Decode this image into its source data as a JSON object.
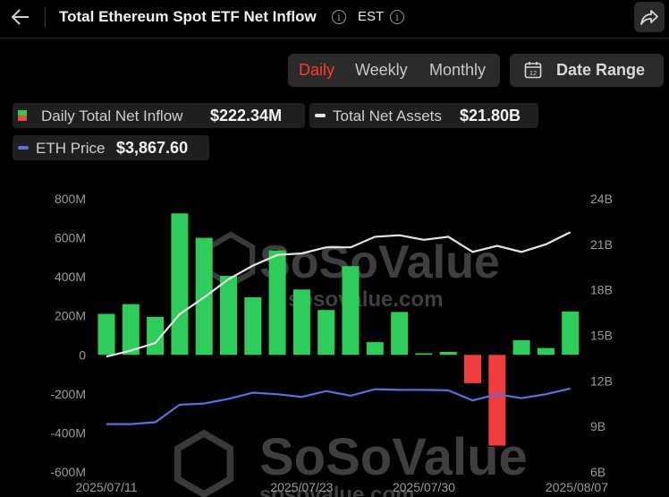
{
  "header": {
    "title": "Total Ethereum Spot ETF Net Inflow",
    "timezone": "EST"
  },
  "tabs": [
    {
      "label": "Daily",
      "active": true
    },
    {
      "label": "Weekly",
      "active": false
    },
    {
      "label": "Monthly",
      "active": false
    }
  ],
  "date_range_label": "Date Range",
  "calendar_icon_digits": "12",
  "legend": {
    "inflow_label": "Daily Total Net Inflow",
    "inflow_value": "$222.34M",
    "assets_label": "Total Net Assets",
    "assets_value": "$21.80B",
    "price_label": "ETH Price",
    "price_value": "$3,867.60"
  },
  "watermark": {
    "brand": "SoSoValue",
    "url": "sosovalue.com"
  },
  "colors": {
    "positive_bar": "#2ecc5a",
    "negative_bar": "#f03e3e",
    "assets_line": "#e6e6e6",
    "price_line": "#5b6ee0",
    "active_tab": "#ff3b30"
  },
  "chart_data": {
    "type": "bar",
    "x_tick_labels": [
      "2025/07/11",
      "2025/07/23",
      "2025/07/30",
      "2025/08/07"
    ],
    "left_axis": {
      "ticks": [
        "800M",
        "600M",
        "400M",
        "200M",
        "0",
        "-200M",
        "-400M",
        "-600M"
      ],
      "ylim_millions": [
        -600,
        800
      ]
    },
    "right_axis": {
      "ticks": [
        "24B",
        "21B",
        "18B",
        "15B",
        "12B",
        "9B",
        "6B"
      ],
      "ylim_billions": [
        6,
        24
      ]
    },
    "series": [
      {
        "name": "Daily Total Net Inflow",
        "unit": "M",
        "values": [
          210,
          260,
          195,
          725,
          600,
          405,
          295,
          535,
          335,
          230,
          455,
          65,
          220,
          8,
          15,
          -145,
          -465,
          75,
          35,
          222.34
        ]
      },
      {
        "name": "Total Net Assets",
        "unit": "B",
        "values": [
          13.6,
          14.0,
          14.5,
          16.4,
          17.5,
          18.7,
          19.6,
          20.3,
          20.4,
          20.8,
          20.8,
          21.5,
          21.6,
          21.3,
          21.5,
          20.5,
          20.9,
          20.5,
          21.0,
          21.8
        ]
      },
      {
        "name": "ETH Price",
        "unit": "USD",
        "values": [
          2950,
          2950,
          3000,
          3450,
          3480,
          3600,
          3760,
          3720,
          3650,
          3800,
          3680,
          3850,
          3830,
          3830,
          3820,
          3560,
          3720,
          3620,
          3720,
          3867.6
        ]
      }
    ]
  }
}
